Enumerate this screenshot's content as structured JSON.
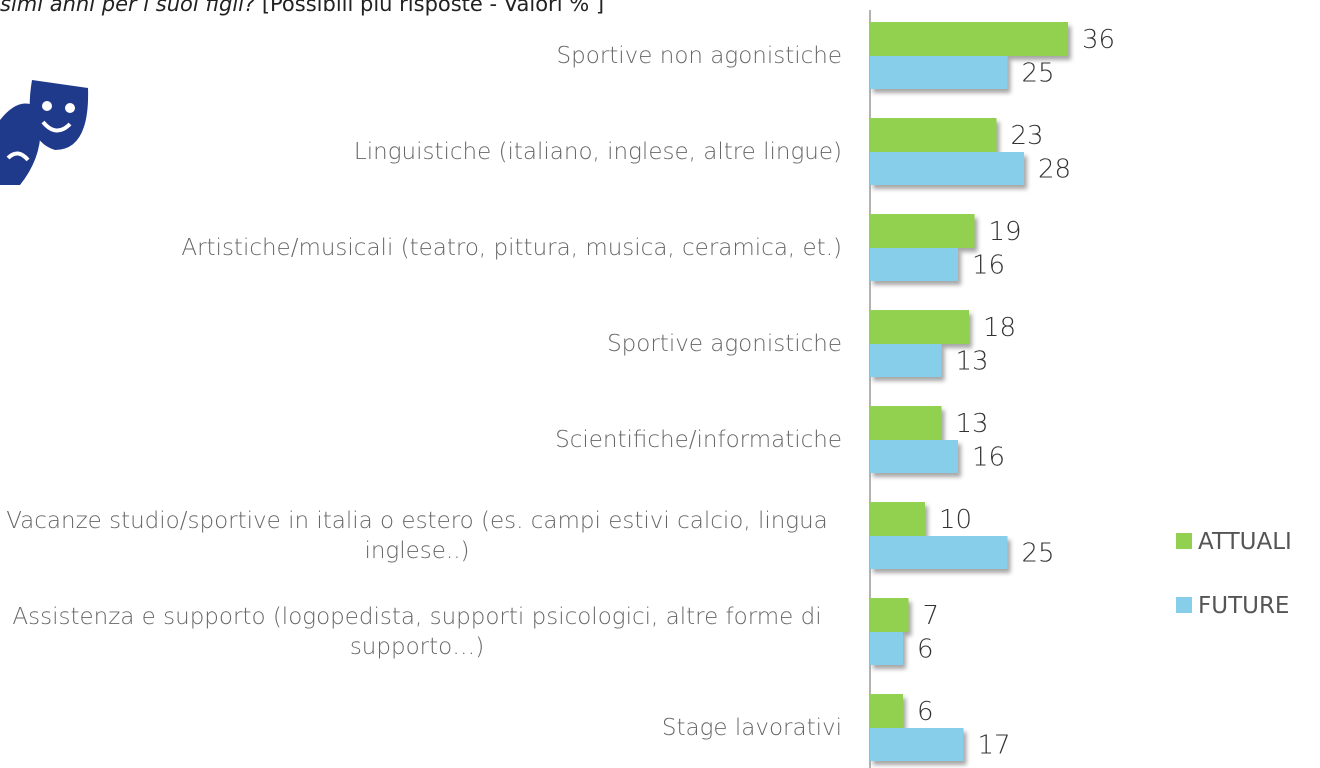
{
  "chart_data": {
    "type": "bar",
    "orientation": "horizontal",
    "title": "simi anni per i suoi figli?",
    "subtitle": "[Possibili più risposte - Valori % ]",
    "categories": [
      "Sportive non agonistiche",
      "Linguistiche (italiano, inglese, altre lingue)",
      "Artistiche/musicali (teatro, pittura, musica, ceramica, et.)",
      "Sportive agonistiche",
      "Scientifiche/informatiche",
      "Vacanze studio/sportive in italia o estero (es. campi estivi calcio, lingua inglese..)",
      "Assistenza e supporto (logopedista, supporti psicologici, altre forme di supporto…)",
      "Stage lavorativi"
    ],
    "series": [
      {
        "name": "ATTUALI",
        "color": "#92d050",
        "values": [
          36,
          23,
          19,
          18,
          13,
          10,
          7,
          6
        ]
      },
      {
        "name": "FUTURE",
        "color": "#87ceeb",
        "values": [
          25,
          28,
          16,
          13,
          16,
          25,
          6,
          17
        ]
      }
    ],
    "legend": "right"
  }
}
